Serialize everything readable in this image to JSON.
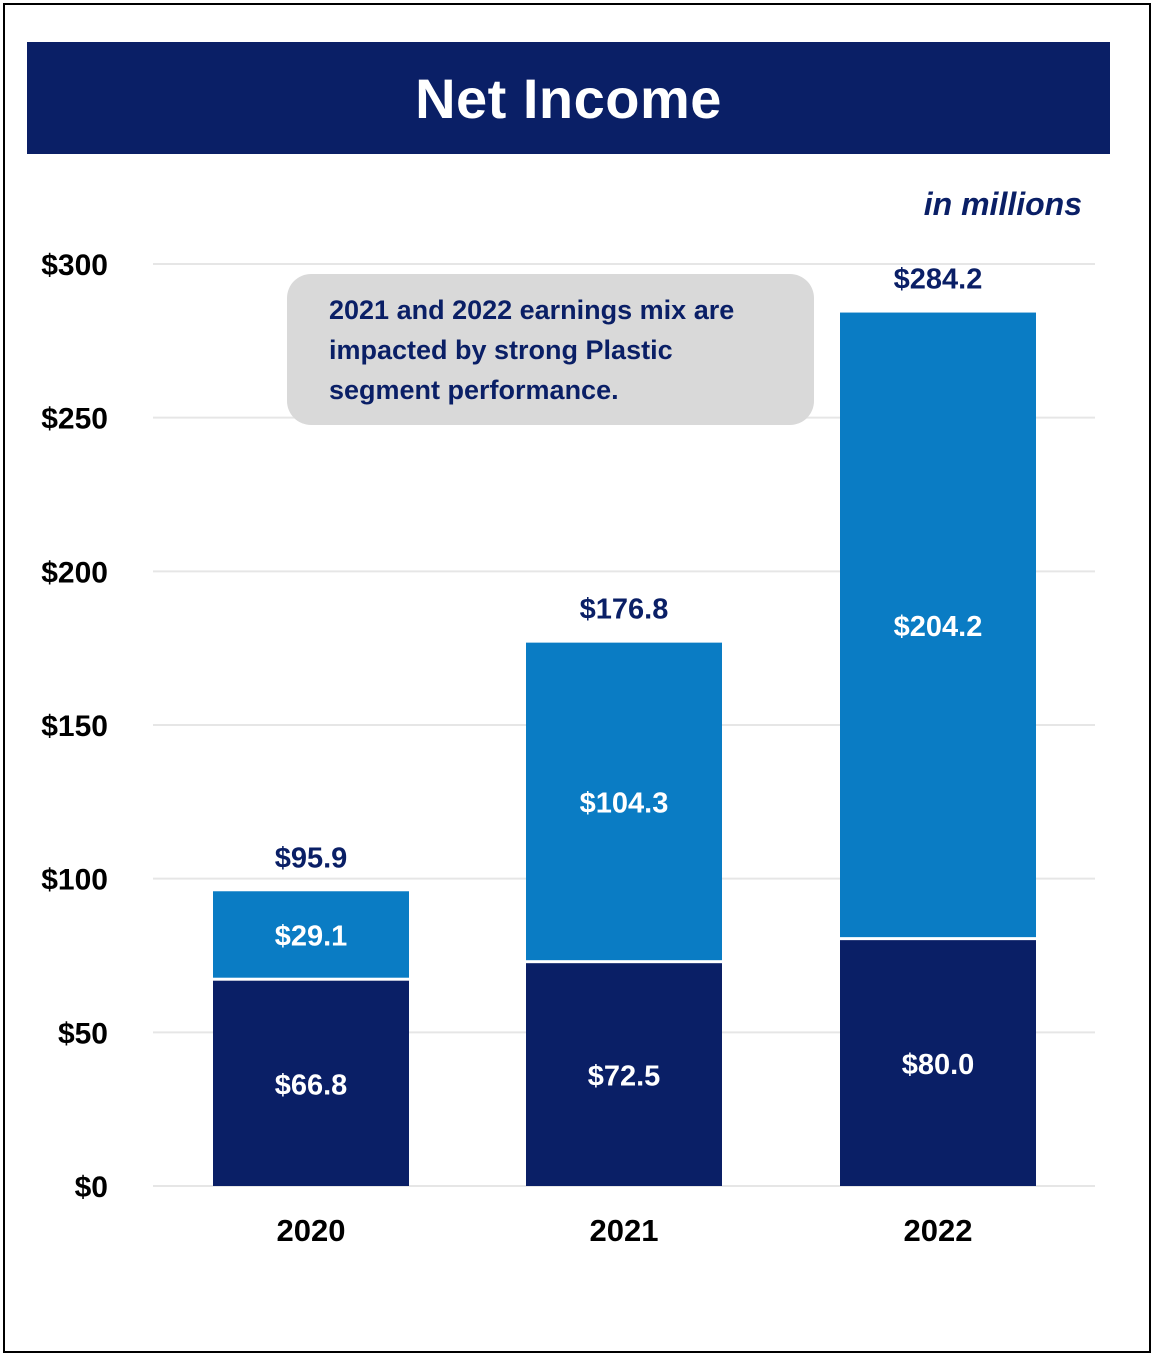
{
  "title": "Net Income",
  "units_note": "in millions",
  "annotation": "2021 and 2022 earnings mix are impacted by strong Plastic segment performance.",
  "colors": {
    "banner": "#0a1f66",
    "dark_series": "#0a1f66",
    "light_series": "#0a7cc4",
    "gridline": "#e6e6e6",
    "annotation_bg": "#d9d9d9",
    "axis_text": "#000000",
    "total_label": "#0a1f66"
  },
  "chart_data": {
    "type": "bar",
    "stacked": true,
    "title": "Net Income",
    "categories": [
      "2020",
      "2021",
      "2022"
    ],
    "series": [
      {
        "values": [
          66.8,
          72.5,
          80.0
        ],
        "labels": [
          "$66.8",
          "$72.5",
          "$80.0"
        ],
        "color": "#0a1f66"
      },
      {
        "values": [
          29.1,
          104.3,
          204.2
        ],
        "labels": [
          "$29.1",
          "$104.3",
          "$204.2"
        ],
        "color": "#0a7cc4"
      }
    ],
    "totals": [
      95.9,
      176.8,
      284.2
    ],
    "total_labels": [
      "$95.9",
      "$176.8",
      "$284.2"
    ],
    "ylim": [
      0,
      300
    ],
    "yticks": [
      0,
      50,
      100,
      150,
      200,
      250,
      300
    ],
    "ytick_labels": [
      "$0",
      "$50",
      "$100",
      "$150",
      "$200",
      "$250",
      "$300"
    ],
    "grid": true,
    "legend": "none",
    "unit_note": "in millions"
  }
}
